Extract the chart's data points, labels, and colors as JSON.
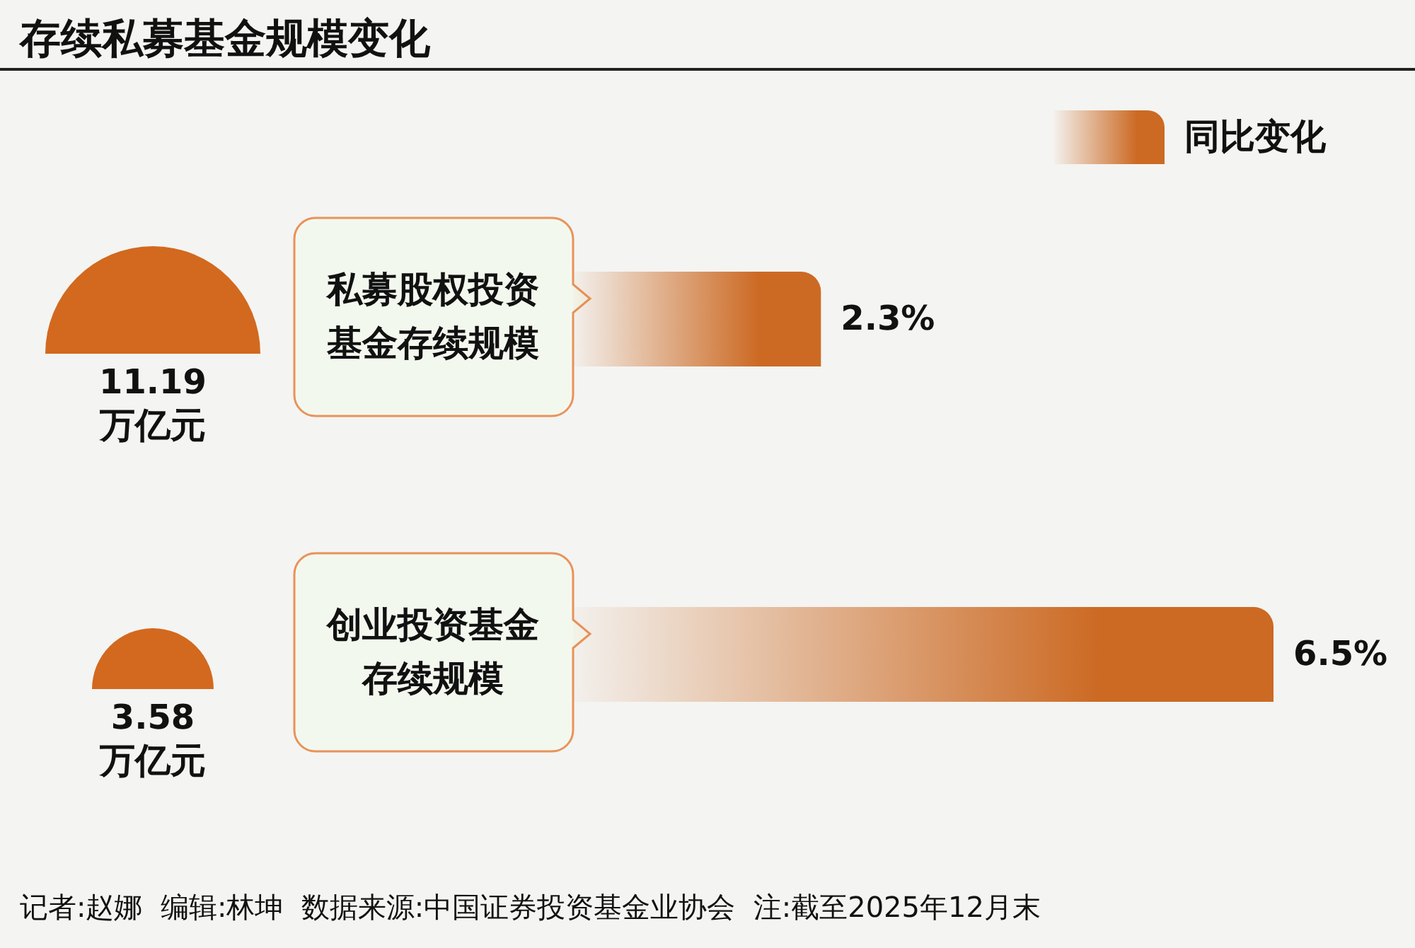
{
  "chart_data": [
    {
      "type": "other",
      "title": "存续私募基金规模变化",
      "categories": [
        null,
        null
      ],
      "values": [
        11.19,
        3.58
      ],
      "value_labels": [
        "11.19",
        "3.58"
      ],
      "colors": [
        "#d2691e",
        "#d2691e"
      ],
      "annotations": [
        "万亿元",
        "万亿元",
        "记者:赵娜  编辑:林坤  数据来源:中国证券投资基金业协会  注:截至2025年12月末"
      ]
    },
    {
      "type": "bar",
      "orientation": "horizontal",
      "categories": [
        "私募股权投资基金存续规模",
        "创业投资基金存续规模"
      ],
      "series": [
        {
          "name": "同比变化",
          "color": "#cc6a24",
          "values": [
            2.3,
            6.5
          ],
          "value_labels": [
            "2.3%",
            "6.5%"
          ]
        }
      ],
      "legend": "top right"
    }
  ]
}
